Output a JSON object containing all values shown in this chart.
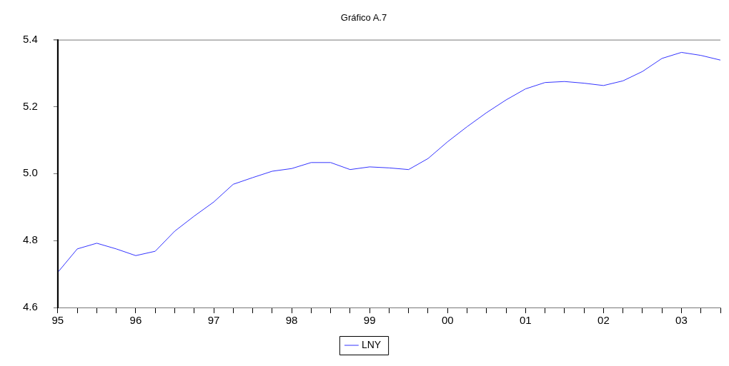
{
  "chart_data": {
    "type": "line",
    "title": "Gráfico A.7",
    "x": [
      1995,
      1995.25,
      1995.5,
      1995.75,
      1996,
      1996.25,
      1996.5,
      1996.75,
      1997,
      1997.25,
      1997.5,
      1997.75,
      1998,
      1998.25,
      1998.5,
      1998.75,
      1999,
      1999.25,
      1999.5,
      1999.75,
      2000,
      2000.25,
      2000.5,
      2000.75,
      2001,
      2001.25,
      2001.5,
      2001.75,
      2002,
      2002.25,
      2002.5,
      2002.75,
      2003,
      2003.25,
      2003.5
    ],
    "series": [
      {
        "name": "LNY",
        "color": "#3333ff",
        "values": [
          4.705,
          4.775,
          4.792,
          4.775,
          4.755,
          4.768,
          4.828,
          4.873,
          4.915,
          4.968,
          4.988,
          5.007,
          5.015,
          5.033,
          5.033,
          5.012,
          5.02,
          5.017,
          5.012,
          5.045,
          5.095,
          5.14,
          5.182,
          5.22,
          5.253,
          5.272,
          5.275,
          5.27,
          5.263,
          5.277,
          5.305,
          5.344,
          5.362,
          5.353,
          5.339
        ]
      }
    ],
    "xlim": [
      1995,
      2003.5
    ],
    "xticks": [
      {
        "value": 1995,
        "label": "95"
      },
      {
        "value": 1995.25,
        "label": null
      },
      {
        "value": 1995.5,
        "label": null
      },
      {
        "value": 1995.75,
        "label": null
      },
      {
        "value": 1996,
        "label": "96"
      },
      {
        "value": 1996.25,
        "label": null
      },
      {
        "value": 1996.5,
        "label": null
      },
      {
        "value": 1996.75,
        "label": null
      },
      {
        "value": 1997,
        "label": "97"
      },
      {
        "value": 1997.25,
        "label": null
      },
      {
        "value": 1997.5,
        "label": null
      },
      {
        "value": 1997.75,
        "label": null
      },
      {
        "value": 1998,
        "label": "98"
      },
      {
        "value": 1998.25,
        "label": null
      },
      {
        "value": 1998.5,
        "label": null
      },
      {
        "value": 1998.75,
        "label": null
      },
      {
        "value": 1999,
        "label": "99"
      },
      {
        "value": 1999.25,
        "label": null
      },
      {
        "value": 1999.5,
        "label": null
      },
      {
        "value": 1999.75,
        "label": null
      },
      {
        "value": 2000,
        "label": "00"
      },
      {
        "value": 2000.25,
        "label": null
      },
      {
        "value": 2000.5,
        "label": null
      },
      {
        "value": 2000.75,
        "label": null
      },
      {
        "value": 2001,
        "label": "01"
      },
      {
        "value": 2001.25,
        "label": null
      },
      {
        "value": 2001.5,
        "label": null
      },
      {
        "value": 2001.75,
        "label": null
      },
      {
        "value": 2002,
        "label": "02"
      },
      {
        "value": 2002.25,
        "label": null
      },
      {
        "value": 2002.5,
        "label": null
      },
      {
        "value": 2002.75,
        "label": null
      },
      {
        "value": 2003,
        "label": "03"
      },
      {
        "value": 2003.25,
        "label": null
      },
      {
        "value": 2003.5,
        "label": null
      }
    ],
    "ylim": [
      4.6,
      5.4
    ],
    "yticks": [
      {
        "value": 4.6,
        "label": "4.6"
      },
      {
        "value": 4.8,
        "label": "4.8"
      },
      {
        "value": 5.0,
        "label": "5.0"
      },
      {
        "value": 5.2,
        "label": "5.2"
      },
      {
        "value": 5.4,
        "label": "5.4"
      }
    ],
    "grid": false,
    "legend": "bottom",
    "marker": "none",
    "line_style": "solid"
  }
}
